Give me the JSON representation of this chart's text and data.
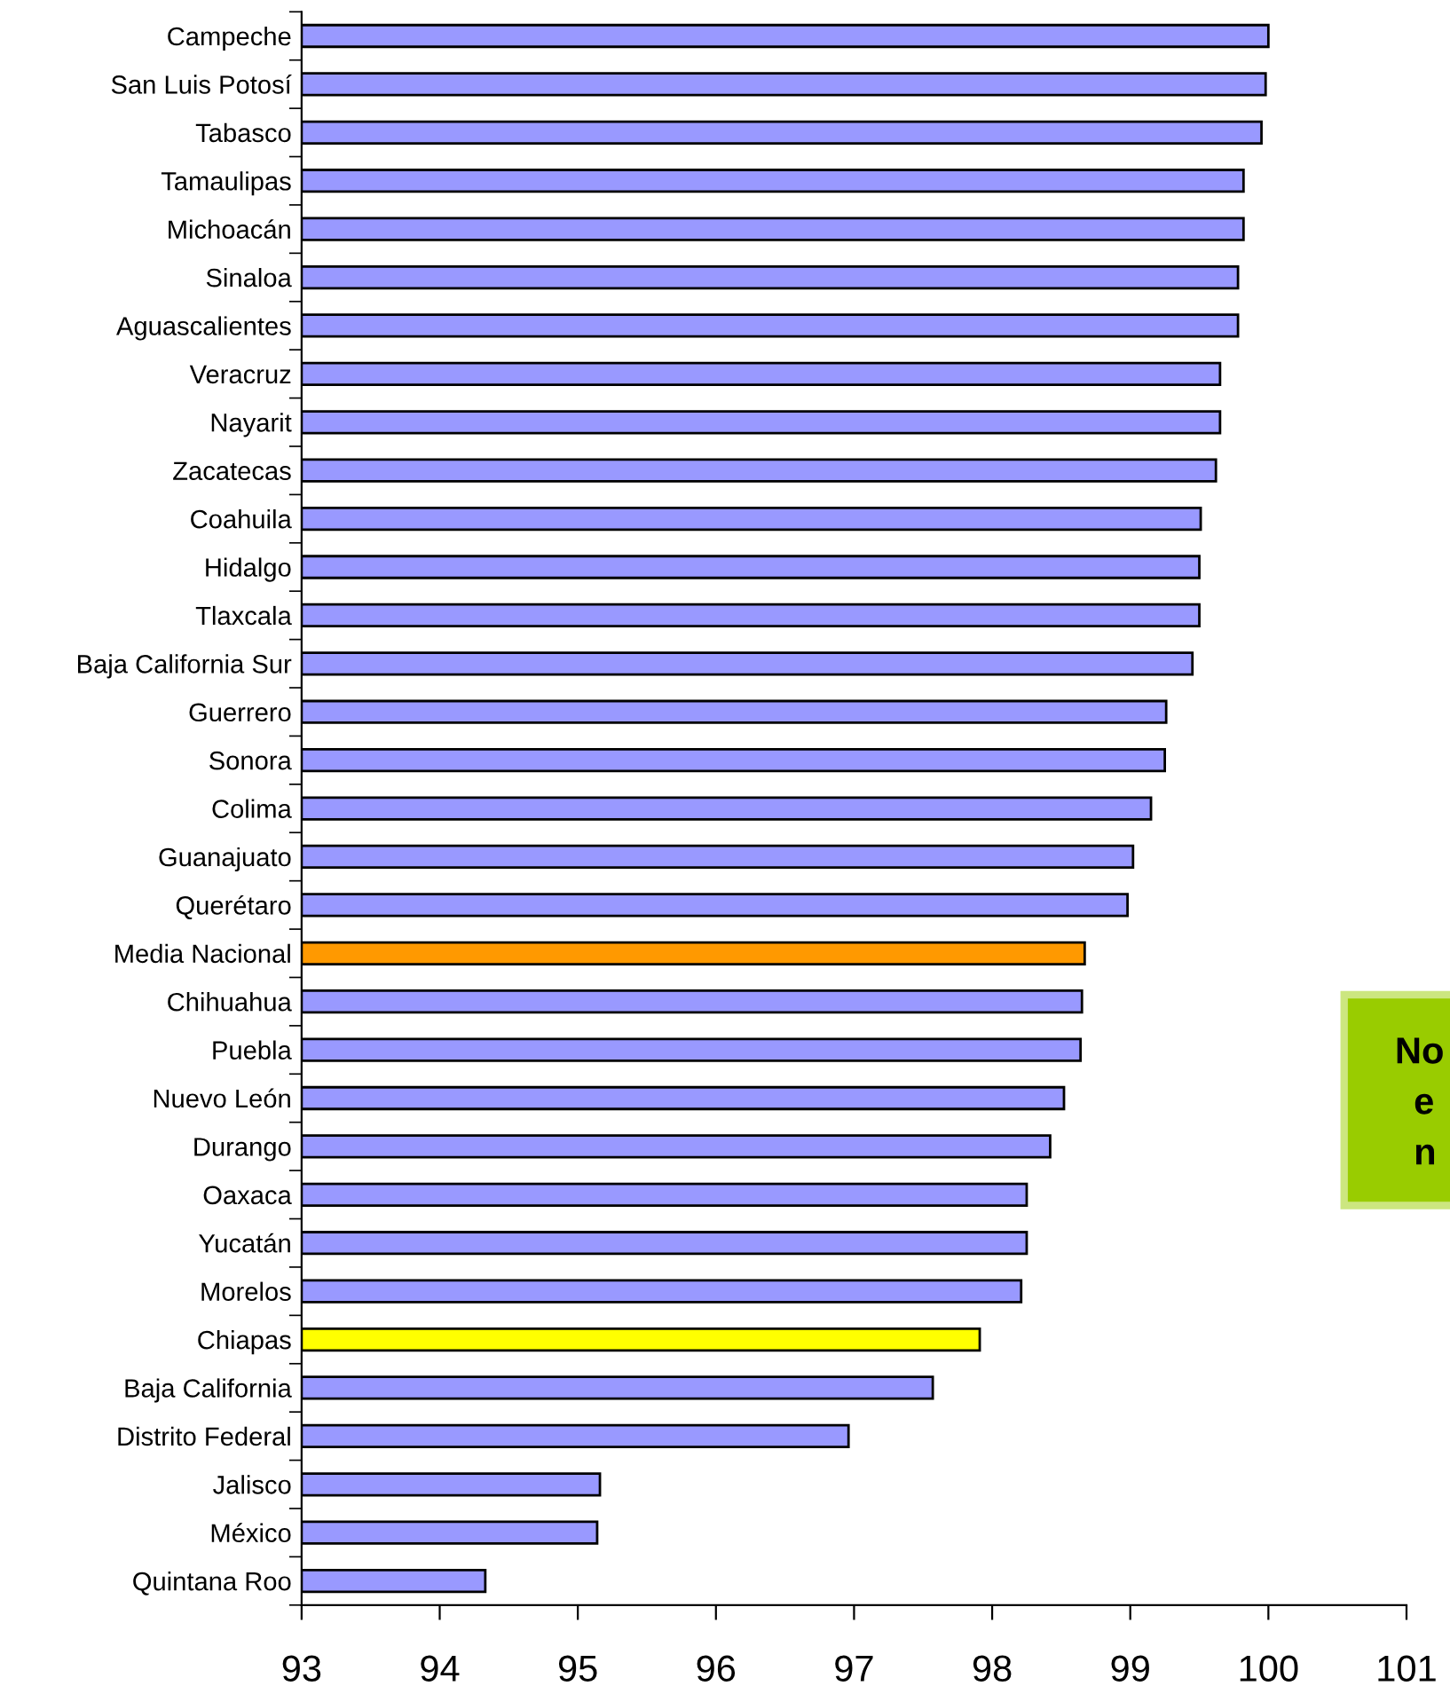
{
  "chart_data": {
    "type": "bar",
    "orientation": "horizontal",
    "categories": [
      "Campeche",
      "San Luis Potosí",
      "Tabasco",
      "Tamaulipas",
      "Michoacán",
      "Sinaloa",
      "Aguascalientes",
      "Veracruz",
      "Nayarit",
      "Zacatecas",
      "Coahuila",
      "Hidalgo",
      "Tlaxcala",
      "Baja California Sur",
      "Guerrero",
      "Sonora",
      "Colima",
      "Guanajuato",
      "Querétaro",
      "Media Nacional",
      "Chihuahua",
      "Puebla",
      "Nuevo León",
      "Durango",
      "Oaxaca",
      "Yucatán",
      "Morelos",
      "Chiapas",
      "Baja California",
      "Distrito Federal",
      "Jalisco",
      "México",
      "Quintana Roo"
    ],
    "values": [
      100.0,
      99.98,
      99.95,
      99.82,
      99.82,
      99.78,
      99.78,
      99.65,
      99.65,
      99.62,
      99.51,
      99.5,
      99.5,
      99.45,
      99.26,
      99.25,
      99.15,
      99.02,
      98.98,
      98.67,
      98.65,
      98.64,
      98.52,
      98.42,
      98.25,
      98.25,
      98.21,
      97.91,
      97.57,
      96.96,
      95.16,
      95.14,
      94.33
    ],
    "colors": [
      "#9999ff",
      "#9999ff",
      "#9999ff",
      "#9999ff",
      "#9999ff",
      "#9999ff",
      "#9999ff",
      "#9999ff",
      "#9999ff",
      "#9999ff",
      "#9999ff",
      "#9999ff",
      "#9999ff",
      "#9999ff",
      "#9999ff",
      "#9999ff",
      "#9999ff",
      "#9999ff",
      "#9999ff",
      "#ff9900",
      "#9999ff",
      "#9999ff",
      "#9999ff",
      "#9999ff",
      "#9999ff",
      "#9999ff",
      "#9999ff",
      "#ffff00",
      "#9999ff",
      "#9999ff",
      "#9999ff",
      "#9999ff",
      "#9999ff"
    ],
    "xlim": [
      93,
      101
    ],
    "xticks": [
      93,
      94,
      95,
      96,
      97,
      98,
      99,
      100,
      101
    ],
    "grid": false,
    "legend": false,
    "annotations": [
      "No",
      "e",
      "n"
    ]
  }
}
